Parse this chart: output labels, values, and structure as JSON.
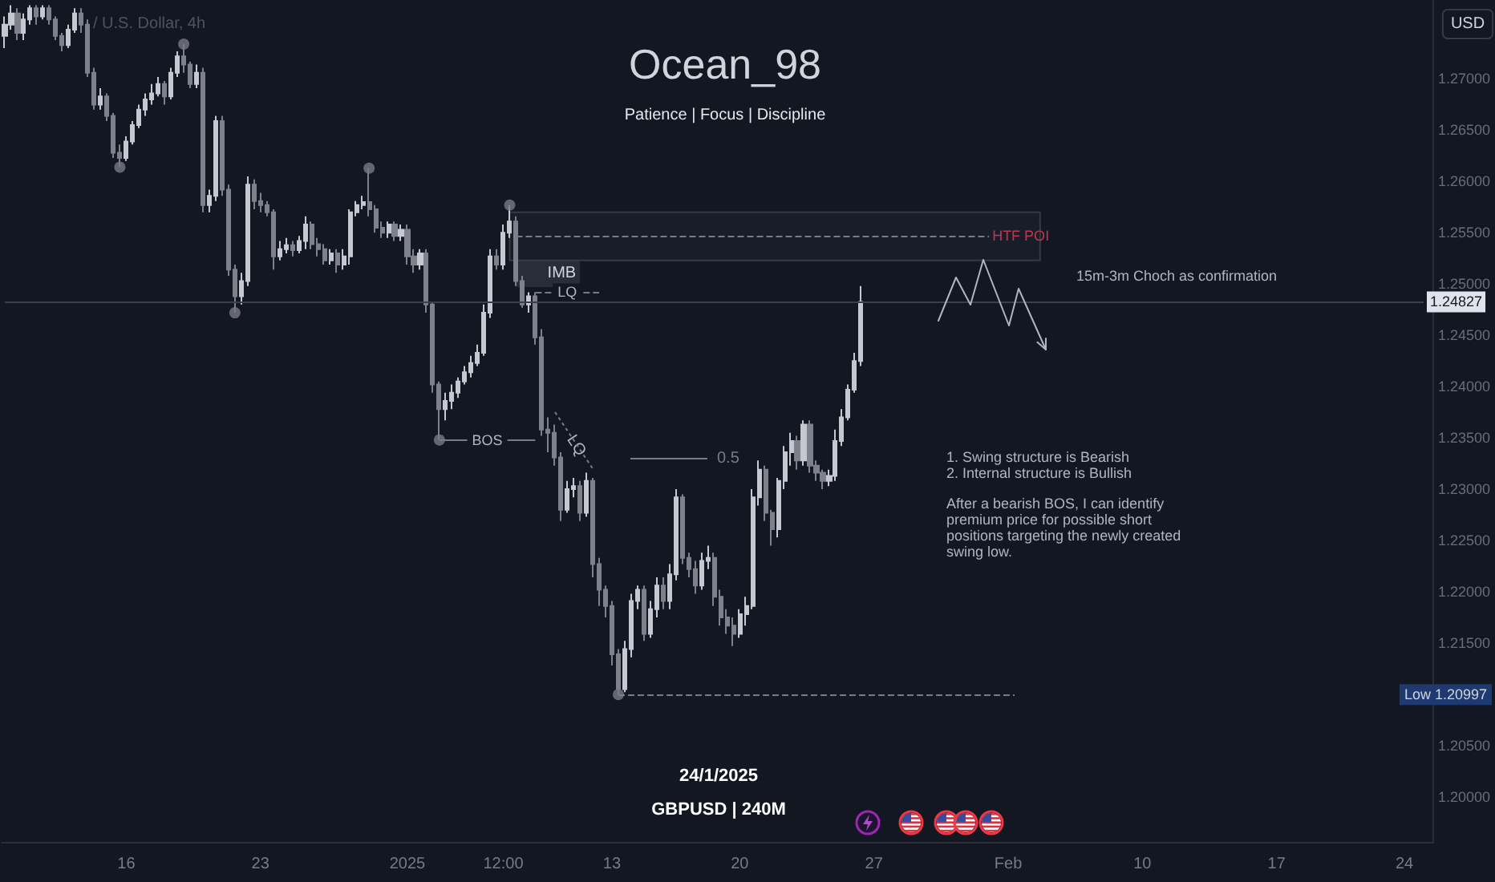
{
  "chart_data": {
    "type": "candlestick",
    "title": "Ocean_98",
    "subtitle": "Patience | Focus | Discipline",
    "ylabel": "USD",
    "categories": [
      null,
      null,
      null,
      null,
      null,
      null,
      null,
      null,
      null,
      null,
      null,
      null,
      null,
      null,
      null,
      null,
      null,
      null,
      null,
      "16",
      null,
      null,
      null,
      null,
      null,
      null,
      null,
      null,
      null,
      null,
      null,
      null,
      null,
      null,
      null,
      null,
      null,
      null,
      null,
      null,
      "23",
      null,
      null,
      null,
      null,
      null,
      null,
      null,
      null,
      null,
      null,
      null,
      null,
      null,
      null,
      null,
      null,
      null,
      null,
      null,
      null,
      null,
      null,
      "2025",
      null,
      null,
      null,
      null,
      null,
      null,
      null,
      null,
      null,
      null,
      null,
      null,
      null,
      null,
      "12:00",
      null,
      null,
      null,
      null,
      null,
      null,
      null,
      null,
      null,
      null,
      null,
      null,
      null,
      null,
      null,
      null,
      "13",
      null,
      null,
      null,
      null,
      null,
      null,
      null,
      null,
      null,
      null,
      null,
      null,
      null,
      null,
      null,
      null,
      null,
      null,
      null,
      "20",
      null,
      null,
      null,
      null,
      null,
      null,
      null,
      null,
      null,
      null,
      null,
      null,
      null,
      null,
      null,
      null,
      null,
      null,
      null,
      null,
      "27",
      null,
      null,
      null,
      null,
      null,
      null,
      null,
      null,
      null,
      null,
      null,
      null,
      null,
      null,
      null,
      null,
      null,
      null,
      null,
      null,
      "Feb",
      null,
      null,
      null,
      null,
      null,
      null,
      null,
      null,
      null,
      null,
      null,
      null,
      null,
      null,
      null,
      null,
      null,
      null,
      null,
      null,
      "10",
      null,
      null,
      null,
      null,
      null,
      null,
      null,
      null,
      null,
      null,
      null,
      null,
      null,
      null,
      null,
      null,
      null,
      null,
      null,
      null,
      "17",
      null,
      null,
      null,
      null,
      null,
      null,
      null,
      null,
      null,
      null,
      null,
      null,
      null,
      null,
      null,
      null,
      null,
      null,
      null,
      "24",
      null,
      null,
      null,
      null
    ],
    "ohlc": [
      [
        1.2742,
        1.2761,
        1.273,
        1.2753
      ],
      [
        1.2753,
        1.2772,
        1.2748,
        1.2764
      ],
      [
        1.2764,
        1.2769,
        1.2738,
        1.2745
      ],
      [
        1.2745,
        1.2764,
        1.2738,
        1.2758
      ],
      [
        1.2758,
        1.2772,
        1.2753,
        1.2769
      ],
      [
        1.2769,
        1.2772,
        1.2753,
        1.2761
      ],
      [
        1.2761,
        1.2772,
        1.2758,
        1.2769
      ],
      [
        1.2769,
        1.2772,
        1.2753,
        1.2758
      ],
      [
        1.2758,
        1.2761,
        1.2738,
        1.2742
      ],
      [
        1.2742,
        1.2745,
        1.2727,
        1.2733
      ],
      [
        1.2733,
        1.2753,
        1.273,
        1.2748
      ],
      [
        1.2748,
        1.2769,
        1.2745,
        1.2764
      ],
      [
        1.2764,
        1.2769,
        1.2745,
        1.2753
      ],
      [
        1.2753,
        1.2758,
        1.2702,
        1.2706
      ],
      [
        1.2706,
        1.2711,
        1.267,
        1.2675
      ],
      [
        1.2675,
        1.2691,
        1.267,
        1.2683
      ],
      [
        1.2683,
        1.2686,
        1.2659,
        1.2664
      ],
      [
        1.2664,
        1.2667,
        1.2623,
        1.2628
      ],
      [
        1.2628,
        1.2636,
        1.2614,
        1.2623
      ],
      [
        1.2623,
        1.2644,
        1.262,
        1.2639
      ],
      [
        1.2639,
        1.2659,
        1.2636,
        1.2655
      ],
      [
        1.2655,
        1.2675,
        1.2652,
        1.267
      ],
      [
        1.267,
        1.2686,
        1.2664,
        1.268
      ],
      [
        1.268,
        1.2695,
        1.2675,
        1.2686
      ],
      [
        1.2686,
        1.2702,
        1.2683,
        1.2695
      ],
      [
        1.2695,
        1.2698,
        1.2675,
        1.2683
      ],
      [
        1.2683,
        1.2711,
        1.268,
        1.2706
      ],
      [
        1.2706,
        1.2727,
        1.2702,
        1.2722
      ],
      [
        1.2722,
        1.2734,
        1.2706,
        1.2714
      ],
      [
        1.2714,
        1.2717,
        1.2691,
        1.2695
      ],
      [
        1.2695,
        1.2714,
        1.2691,
        1.2706
      ],
      [
        1.2706,
        1.2711,
        1.257,
        1.2577
      ],
      [
        1.2577,
        1.2592,
        1.257,
        1.2586
      ],
      [
        1.2586,
        1.2664,
        1.2581,
        1.2659
      ],
      [
        1.2659,
        1.2664,
        1.2586,
        1.2592
      ],
      [
        1.2592,
        1.2597,
        1.2508,
        1.2514
      ],
      [
        1.2514,
        1.2519,
        1.2472,
        1.2488
      ],
      [
        1.2488,
        1.2511,
        1.248,
        1.2503
      ],
      [
        1.2503,
        1.2605,
        1.2498,
        1.2597
      ],
      [
        1.2597,
        1.2602,
        1.2573,
        1.2581
      ],
      [
        1.2581,
        1.2589,
        1.257,
        1.2577
      ],
      [
        1.2577,
        1.2581,
        1.2566,
        1.257
      ],
      [
        1.257,
        1.2573,
        1.2514,
        1.2527
      ],
      [
        1.2527,
        1.2542,
        1.2523,
        1.2534
      ],
      [
        1.2534,
        1.2545,
        1.253,
        1.2538
      ],
      [
        1.2538,
        1.2542,
        1.2527,
        1.2533
      ],
      [
        1.2533,
        1.2547,
        1.253,
        1.2542
      ],
      [
        1.2542,
        1.2566,
        1.2534,
        1.2558
      ],
      [
        1.2558,
        1.2561,
        1.2534,
        1.2539
      ],
      [
        1.2539,
        1.2545,
        1.2527,
        1.2534
      ],
      [
        1.2534,
        1.2539,
        1.2519,
        1.2523
      ],
      [
        1.2523,
        1.2534,
        1.2519,
        1.253
      ],
      [
        1.253,
        1.2534,
        1.2511,
        1.2519
      ],
      [
        1.2519,
        1.2534,
        1.2514,
        1.2527
      ],
      [
        1.2527,
        1.2573,
        1.2519,
        1.257
      ],
      [
        1.257,
        1.2581,
        1.2566,
        1.2577
      ],
      [
        1.2577,
        1.2586,
        1.2573,
        1.258
      ],
      [
        1.258,
        1.2613,
        1.2566,
        1.2573
      ],
      [
        1.2573,
        1.2577,
        1.255,
        1.2555
      ],
      [
        1.2555,
        1.2561,
        1.2545,
        1.255
      ],
      [
        1.255,
        1.2561,
        1.2545,
        1.2558
      ],
      [
        1.2558,
        1.2561,
        1.2542,
        1.2547
      ],
      [
        1.2547,
        1.2558,
        1.2542,
        1.2553
      ],
      [
        1.2553,
        1.2558,
        1.2519,
        1.2527
      ],
      [
        1.2527,
        1.2534,
        1.2511,
        1.2519
      ],
      [
        1.2519,
        1.2534,
        1.2514,
        1.253
      ],
      [
        1.253,
        1.2534,
        1.2472,
        1.248
      ],
      [
        1.248,
        1.2483,
        1.2394,
        1.2402
      ],
      [
        1.2402,
        1.2405,
        1.2348,
        1.2378
      ],
      [
        1.2378,
        1.2394,
        1.2367,
        1.2386
      ],
      [
        1.2386,
        1.2402,
        1.2378,
        1.2394
      ],
      [
        1.2394,
        1.2409,
        1.2389,
        1.2405
      ],
      [
        1.2405,
        1.242,
        1.2402,
        1.2414
      ],
      [
        1.2414,
        1.243,
        1.2409,
        1.2423
      ],
      [
        1.2423,
        1.2441,
        1.242,
        1.2433
      ],
      [
        1.2433,
        1.248,
        1.243,
        1.2472
      ],
      [
        1.2472,
        1.2534,
        1.2467,
        1.2527
      ],
      [
        1.2527,
        1.2534,
        1.2514,
        1.2519
      ],
      [
        1.2519,
        1.2558,
        1.2514,
        1.255
      ],
      [
        1.255,
        1.2577,
        1.2545,
        1.2561
      ],
      [
        1.2561,
        1.2566,
        1.2498,
        1.2503
      ],
      [
        1.2503,
        1.2508,
        1.2477,
        1.248
      ],
      [
        1.248,
        1.2492,
        1.2472,
        1.2488
      ],
      [
        1.2488,
        1.2492,
        1.2441,
        1.2448
      ],
      [
        1.2448,
        1.2456,
        1.2352,
        1.2358
      ],
      [
        1.2358,
        1.237,
        1.2336,
        1.2355
      ],
      [
        1.2355,
        1.2363,
        1.2323,
        1.2331
      ],
      [
        1.2331,
        1.2336,
        1.2269,
        1.228
      ],
      [
        1.228,
        1.2308,
        1.2277,
        1.23
      ],
      [
        1.23,
        1.2311,
        1.2292,
        1.2303
      ],
      [
        1.2303,
        1.2308,
        1.2269,
        1.2277
      ],
      [
        1.2277,
        1.2316,
        1.2273,
        1.2308
      ],
      [
        1.2308,
        1.2311,
        1.2214,
        1.2227
      ],
      [
        1.2227,
        1.2233,
        1.2186,
        1.2202
      ],
      [
        1.2202,
        1.2206,
        1.2175,
        1.2186
      ],
      [
        1.2186,
        1.2191,
        1.2128,
        1.2139
      ],
      [
        1.2139,
        1.2144,
        1.20997,
        1.2105
      ],
      [
        1.2105,
        1.2152,
        1.2102,
        1.2144
      ],
      [
        1.2144,
        1.2198,
        1.2136,
        1.2191
      ],
      [
        1.2191,
        1.2206,
        1.2183,
        1.2202
      ],
      [
        1.2202,
        1.2206,
        1.2152,
        1.2159
      ],
      [
        1.2159,
        1.2191,
        1.2155,
        1.2183
      ],
      [
        1.2183,
        1.2214,
        1.2175,
        1.2206
      ],
      [
        1.2206,
        1.2214,
        1.2183,
        1.2191
      ],
      [
        1.2191,
        1.2227,
        1.2183,
        1.2217
      ],
      [
        1.2217,
        1.23,
        1.2211,
        1.2292
      ],
      [
        1.2292,
        1.2295,
        1.2227,
        1.2233
      ],
      [
        1.2233,
        1.2238,
        1.2214,
        1.2222
      ],
      [
        1.2222,
        1.223,
        1.2198,
        1.2206
      ],
      [
        1.2206,
        1.2238,
        1.2202,
        1.223
      ],
      [
        1.223,
        1.2245,
        1.2222,
        1.2233
      ],
      [
        1.2233,
        1.2238,
        1.2186,
        1.2195
      ],
      [
        1.2195,
        1.2202,
        1.2167,
        1.2175
      ],
      [
        1.2175,
        1.2183,
        1.2159,
        1.2167
      ],
      [
        1.2167,
        1.2175,
        1.2147,
        1.2159
      ],
      [
        1.2159,
        1.2183,
        1.2155,
        1.2178
      ],
      [
        1.2178,
        1.2195,
        1.2167,
        1.2186
      ],
      [
        1.2186,
        1.23,
        1.2183,
        1.2292
      ],
      [
        1.2292,
        1.2328,
        1.2284,
        1.2319
      ],
      [
        1.2319,
        1.2323,
        1.2269,
        1.2277
      ],
      [
        1.2277,
        1.228,
        1.2245,
        1.2261
      ],
      [
        1.2261,
        1.2311,
        1.2253,
        1.2308
      ],
      [
        1.2308,
        1.2342,
        1.23,
        1.2336
      ],
      [
        1.2336,
        1.2355,
        1.2323,
        1.2347
      ],
      [
        1.2347,
        1.2352,
        1.2319,
        1.2328
      ],
      [
        1.2328,
        1.2367,
        1.2323,
        1.2363
      ],
      [
        1.2363,
        1.2367,
        1.2316,
        1.2323
      ],
      [
        1.2323,
        1.2328,
        1.2308,
        1.2316
      ],
      [
        1.2316,
        1.2319,
        1.23,
        1.2308
      ],
      [
        1.2308,
        1.2319,
        1.2303,
        1.2313
      ],
      [
        1.2313,
        1.2358,
        1.2308,
        1.2347
      ],
      [
        1.2347,
        1.2378,
        1.2342,
        1.237
      ],
      [
        1.237,
        1.2402,
        1.2367,
        1.2397
      ],
      [
        1.2397,
        1.2433,
        1.2394,
        1.2425
      ],
      [
        1.2425,
        1.2498,
        1.242,
        1.24827
      ],
      null,
      null,
      null,
      null,
      null,
      null,
      null,
      null,
      null,
      null,
      null,
      null,
      null,
      null,
      null,
      null,
      null,
      null,
      null,
      null,
      null,
      null,
      null,
      null,
      null,
      null,
      null,
      null,
      null,
      null,
      null,
      null,
      null,
      null,
      null,
      null,
      null,
      null,
      null,
      null,
      null,
      null,
      null,
      null,
      null,
      null,
      null,
      null,
      null,
      null,
      null,
      null,
      null,
      null,
      null,
      null,
      null,
      null,
      null,
      null,
      null,
      null,
      null,
      null,
      null,
      null,
      null,
      null,
      null,
      null,
      null,
      null,
      null,
      null,
      null,
      null,
      null,
      null,
      null,
      null,
      null,
      null,
      null,
      null,
      null,
      null,
      null,
      null,
      null
    ],
    "colors": [
      "#c5c8d0",
      "#c5c8d0",
      "#7e818b",
      "#c5c8d0",
      "#c5c8d0",
      "#7e818b",
      "#c5c8d0",
      "#7e818b",
      "#7e818b",
      "#7e818b",
      "#c5c8d0",
      "#c5c8d0",
      "#7e818b",
      "#7e818b",
      "#7e818b",
      "#c5c8d0",
      "#7e818b",
      "#7e818b",
      "#7e818b",
      "#c5c8d0",
      "#c5c8d0",
      "#c5c8d0",
      "#c5c8d0",
      "#c5c8d0",
      "#c5c8d0",
      "#7e818b",
      "#c5c8d0",
      "#c5c8d0",
      "#7e818b",
      "#7e818b",
      "#c5c8d0",
      "#7e818b",
      "#c5c8d0",
      "#c5c8d0",
      "#7e818b",
      "#7e818b",
      "#7e818b",
      "#c5c8d0",
      "#c5c8d0",
      "#7e818b",
      "#7e818b",
      "#7e818b",
      "#7e818b",
      "#c5c8d0",
      "#c5c8d0",
      "#7e818b",
      "#c5c8d0",
      "#c5c8d0",
      "#7e818b",
      "#7e818b",
      "#7e818b",
      "#c5c8d0",
      "#7e818b",
      "#c5c8d0",
      "#c5c8d0",
      "#c5c8d0",
      "#c5c8d0",
      "#7e818b",
      "#7e818b",
      "#7e818b",
      "#c5c8d0",
      "#7e818b",
      "#c5c8d0",
      "#7e818b",
      "#7e818b",
      "#c5c8d0",
      "#7e818b",
      "#7e818b",
      "#7e818b",
      "#c5c8d0",
      "#c5c8d0",
      "#c5c8d0",
      "#c5c8d0",
      "#c5c8d0",
      "#c5c8d0",
      "#c5c8d0",
      "#c5c8d0",
      "#7e818b",
      "#c5c8d0",
      "#c5c8d0",
      "#7e818b",
      "#7e818b",
      "#c5c8d0",
      "#7e818b",
      "#7e818b",
      "#7e818b",
      "#7e818b",
      "#7e818b",
      "#c5c8d0",
      "#c5c8d0",
      "#7e818b",
      "#c5c8d0",
      "#7e818b",
      "#7e818b",
      "#7e818b",
      "#7e818b",
      "#7e818b",
      "#c5c8d0",
      "#c5c8d0",
      "#c5c8d0",
      "#7e818b",
      "#c5c8d0",
      "#c5c8d0",
      "#7e818b",
      "#c5c8d0",
      "#c5c8d0",
      "#7e818b",
      "#7e818b",
      "#7e818b",
      "#c5c8d0",
      "#c5c8d0",
      "#7e818b",
      "#7e818b",
      "#7e818b",
      "#7e818b",
      "#c5c8d0",
      "#c5c8d0",
      "#c5c8d0",
      "#c5c8d0",
      "#7e818b",
      "#7e818b",
      "#c5c8d0",
      "#c5c8d0",
      "#c5c8d0",
      "#7e818b",
      "#c5c8d0",
      "#7e818b",
      "#7e818b",
      "#7e818b",
      "#c5c8d0",
      "#c5c8d0",
      "#c5c8d0",
      "#c5c8d0",
      "#c5c8d0",
      "#c5c8d0",
      null,
      null,
      null,
      null,
      null,
      null,
      null,
      null,
      null,
      null,
      null,
      null,
      null,
      null,
      null,
      null,
      null,
      null,
      null,
      null,
      null,
      null,
      null,
      null,
      null,
      null,
      null,
      null,
      null,
      null,
      null,
      null,
      null,
      null,
      null,
      null,
      null,
      null,
      null,
      null,
      null,
      null,
      null,
      null,
      null,
      null,
      null,
      null,
      null,
      null,
      null,
      null,
      null,
      null,
      null,
      null,
      null,
      null,
      null,
      null,
      null,
      null,
      null,
      null,
      null,
      null,
      null,
      null,
      null,
      null,
      null,
      null,
      null,
      null,
      null,
      null,
      null,
      null,
      null,
      null,
      null,
      null,
      null,
      null,
      null,
      null,
      null,
      null,
      null
    ],
    "series": [
      {
        "type": "scatter",
        "color": "#787b86",
        "values": [
          null,
          null,
          null,
          null,
          null,
          null,
          null,
          null,
          null,
          null,
          null,
          null,
          null,
          null,
          null,
          null,
          null,
          null,
          1.2614,
          null,
          null,
          null,
          null,
          null,
          null,
          null,
          null,
          null,
          1.2734,
          null,
          null,
          null,
          null,
          null,
          null,
          null,
          1.2472,
          null,
          null,
          null,
          null,
          null,
          null,
          null,
          null,
          null,
          null,
          null,
          null,
          null,
          null,
          null,
          null,
          null,
          null,
          null,
          null,
          1.2613,
          null,
          null,
          null,
          null,
          null,
          null,
          null,
          null,
          null,
          null,
          1.2348,
          null,
          null,
          null,
          null,
          null,
          null,
          null,
          null,
          null,
          null,
          1.2577,
          null,
          null,
          null,
          null,
          null,
          null,
          null,
          null,
          null,
          null,
          null,
          null,
          null,
          null,
          null,
          null,
          1.20997,
          null,
          null,
          null,
          null,
          null,
          null,
          null,
          null,
          null,
          null,
          null,
          null,
          null,
          null,
          null,
          null,
          null,
          null,
          null,
          null,
          null,
          null,
          null,
          null,
          null,
          null,
          null,
          null,
          null,
          null,
          null,
          null,
          null,
          null,
          null,
          null,
          null,
          null,
          null,
          null,
          null,
          null,
          null,
          null,
          null,
          null,
          null,
          null,
          null,
          null,
          null,
          null,
          null,
          null,
          null,
          null,
          null,
          null,
          null,
          null,
          null,
          null,
          null,
          null,
          null,
          null,
          null,
          null,
          null,
          null,
          null,
          null,
          null,
          null,
          null,
          null,
          null,
          null,
          null,
          null,
          null,
          null,
          null,
          null,
          null,
          null,
          null,
          null,
          null,
          null,
          null,
          null,
          null,
          null,
          null,
          null,
          null,
          null,
          null,
          null,
          null,
          null,
          null,
          null,
          null,
          null,
          null,
          null,
          null,
          null,
          null,
          null,
          null,
          null,
          null,
          null,
          null,
          null,
          null,
          null,
          null,
          null,
          null,
          null,
          null,
          null,
          null
        ]
      }
    ],
    "marker": "circle",
    "ylim": [
      1.1956,
      1.2777
    ],
    "yticks": [
      {
        "value": 1.2,
        "label": "1.20000"
      },
      {
        "value": 1.205,
        "label": "1.20500"
      },
      {
        "value": 1.215,
        "label": "1.21500"
      },
      {
        "value": 1.22,
        "label": "1.22000"
      },
      {
        "value": 1.225,
        "label": "1.22500"
      },
      {
        "value": 1.23,
        "label": "1.23000"
      },
      {
        "value": 1.235,
        "label": "1.23500"
      },
      {
        "value": 1.24,
        "label": "1.24000"
      },
      {
        "value": 1.245,
        "label": "1.24500"
      },
      {
        "value": 1.25,
        "label": "1.25000"
      },
      {
        "value": 1.255,
        "label": "1.25500"
      },
      {
        "value": 1.26,
        "label": "1.26000"
      },
      {
        "value": 1.265,
        "label": "1.26500"
      },
      {
        "value": 1.27,
        "label": "1.27000"
      }
    ],
    "ref_lines": [
      {
        "axis": "y",
        "value": 1.2547,
        "label": "HTF POI",
        "line_style": "dashed"
      },
      {
        "axis": "y",
        "value": 1.2492,
        "label": "LQ",
        "line_style": "dashed"
      },
      {
        "axis": "y",
        "value": 1.24827,
        "label": "1.24827"
      },
      {
        "axis": "y",
        "value": 1.2348,
        "label": "BOS"
      },
      {
        "axis": "y",
        "value": 1.20997,
        "line_style": "dashed"
      }
    ],
    "bands": [
      {
        "axis": "y",
        "from": 1.2523,
        "to": 1.257
      },
      {
        "axis": "y",
        "from": 1.2497,
        "to": 1.2523,
        "label": "IMB"
      }
    ],
    "annotations": [
      "/ U.S. Dollar, 4h",
      "LQ",
      "15m-3m Choch as confirmation",
      "1. Swing structure is Bearish",
      "2. Internal structure is Bullish",
      "After a bearish BOS, I can identify premium price for possible short positions targeting the newly created swing low.",
      "24/1/2025",
      "GBPUSD | 240M",
      "0.5",
      "Low 1.20997"
    ]
  }
}
